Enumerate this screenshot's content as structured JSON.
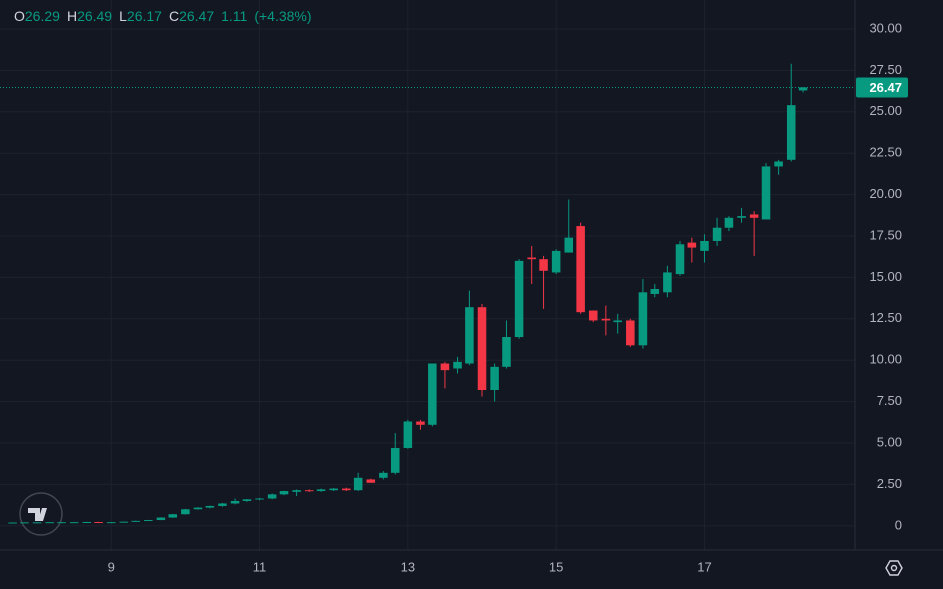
{
  "chart_data": {
    "type": "candlestick",
    "legend_ohlc": [
      {
        "label": "O",
        "value": 26.29
      },
      {
        "label": "H",
        "value": 26.49
      },
      {
        "label": "L",
        "value": 26.17
      },
      {
        "label": "C",
        "value": 26.47
      }
    ],
    "change": 1.11,
    "change_percent": "(+4.38%)",
    "last_price": 26.47,
    "up_color": "#089981",
    "down_color": "#f23645",
    "grid": true,
    "xlim": [
      7.5,
      19.03
    ],
    "xticks": [
      9,
      11,
      13,
      15,
      17
    ],
    "ylim": [
      -1.46,
      31.75
    ],
    "yticks": [
      0,
      {
        "value": 2.5,
        "label": "2.50"
      },
      {
        "value": 5,
        "label": "5.00"
      },
      {
        "value": 7.5,
        "label": "7.50"
      },
      {
        "value": 10,
        "label": "10.00"
      },
      {
        "value": 12.5,
        "label": "12.50"
      },
      {
        "value": 15,
        "label": "15.00"
      },
      {
        "value": 17.5,
        "label": "17.50"
      },
      {
        "value": 20,
        "label": "20.00"
      },
      {
        "value": 22.5,
        "label": "22.50"
      },
      {
        "value": 25,
        "label": "25.00"
      },
      {
        "value": 27.5,
        "label": "27.50"
      },
      {
        "value": 30,
        "label": "30.00"
      }
    ],
    "x": [
      7.67,
      7.83,
      8,
      8.17,
      8.33,
      8.5,
      8.67,
      8.83,
      9,
      9.17,
      9.33,
      9.5,
      9.67,
      9.83,
      10,
      10.17,
      10.33,
      10.5,
      10.67,
      10.83,
      11,
      11.17,
      11.33,
      11.5,
      11.67,
      11.83,
      12,
      12.17,
      12.33,
      12.5,
      12.67,
      12.83,
      13,
      13.17,
      13.33,
      13.5,
      13.67,
      13.83,
      14,
      14.17,
      14.33,
      14.5,
      14.67,
      14.83,
      15,
      15.17,
      15.33,
      15.5,
      15.67,
      15.83,
      16,
      16.17,
      16.33,
      16.5,
      16.67,
      16.83,
      17,
      17.17,
      17.33,
      17.5,
      17.67,
      17.83,
      18,
      18.17,
      18.33
    ],
    "open": [
      0.2,
      0.2,
      0.21,
      0.21,
      0.22,
      0.22,
      0.22,
      0.23,
      0.21,
      0.22,
      0.25,
      0.3,
      0.35,
      0.5,
      0.7,
      1.0,
      1.1,
      1.2,
      1.35,
      1.5,
      1.6,
      1.65,
      1.9,
      2.05,
      2.15,
      2.1,
      2.15,
      2.25,
      2.15,
      2.8,
      2.9,
      3.2,
      4.7,
      6.3,
      6.1,
      9.8,
      9.5,
      9.8,
      13.2,
      8.2,
      9.6,
      11.4,
      16.2,
      16.1,
      15.3,
      16.5,
      18.1,
      13.0,
      12.5,
      12.3,
      12.4,
      10.9,
      14.0,
      14.1,
      15.2,
      17.1,
      16.6,
      17.2,
      18.0,
      18.6,
      18.8,
      18.5,
      21.7,
      22.1,
      26.29
    ],
    "high": [
      0.21,
      0.21,
      0.22,
      0.22,
      0.23,
      0.23,
      0.24,
      0.24,
      0.23,
      0.26,
      0.31,
      0.36,
      0.52,
      0.72,
      1.02,
      1.12,
      1.22,
      1.38,
      1.65,
      1.62,
      1.68,
      1.95,
      2.12,
      2.2,
      2.2,
      2.25,
      2.28,
      2.3,
      3.2,
      2.85,
      3.3,
      5.6,
      6.4,
      6.4,
      9.8,
      9.9,
      10.2,
      14.2,
      13.4,
      9.8,
      12.4,
      16.1,
      16.9,
      16.3,
      16.7,
      19.7,
      18.3,
      13.0,
      13.3,
      12.8,
      12.5,
      14.9,
      14.6,
      15.7,
      17.2,
      17.4,
      17.6,
      18.6,
      18.7,
      19.2,
      19.0,
      21.9,
      22.1,
      27.9,
      26.49
    ],
    "low": [
      0.19,
      0.19,
      0.2,
      0.2,
      0.21,
      0.21,
      0.21,
      0.2,
      0.2,
      0.21,
      0.24,
      0.29,
      0.34,
      0.48,
      0.68,
      0.98,
      1.05,
      1.15,
      1.3,
      1.45,
      1.55,
      1.6,
      1.85,
      1.8,
      2.05,
      2.05,
      2.1,
      2.1,
      2.1,
      2.6,
      2.8,
      3.1,
      4.65,
      5.8,
      6.0,
      8.3,
      9.2,
      9.7,
      7.8,
      7.5,
      9.5,
      11.3,
      14.6,
      13.1,
      15.2,
      16.5,
      12.8,
      12.3,
      11.5,
      11.6,
      10.8,
      10.7,
      13.8,
      13.8,
      15.1,
      15.9,
      15.9,
      16.9,
      17.8,
      18.3,
      16.3,
      18.5,
      21.2,
      22.0,
      26.17
    ],
    "close": [
      0.2,
      0.21,
      0.21,
      0.22,
      0.22,
      0.22,
      0.23,
      0.21,
      0.22,
      0.25,
      0.3,
      0.35,
      0.5,
      0.7,
      1.0,
      1.1,
      1.2,
      1.35,
      1.5,
      1.6,
      1.65,
      1.9,
      2.1,
      2.15,
      2.1,
      2.2,
      2.25,
      2.15,
      2.9,
      2.6,
      3.2,
      4.7,
      6.3,
      6.1,
      9.8,
      9.4,
      9.9,
      13.2,
      8.2,
      9.6,
      11.4,
      16.0,
      16.1,
      15.4,
      16.6,
      17.4,
      12.9,
      12.4,
      12.4,
      12.4,
      10.9,
      14.1,
      14.3,
      15.3,
      17.0,
      16.8,
      17.2,
      18.0,
      18.6,
      18.7,
      18.6,
      21.7,
      22.0,
      25.4,
      26.47
    ]
  }
}
